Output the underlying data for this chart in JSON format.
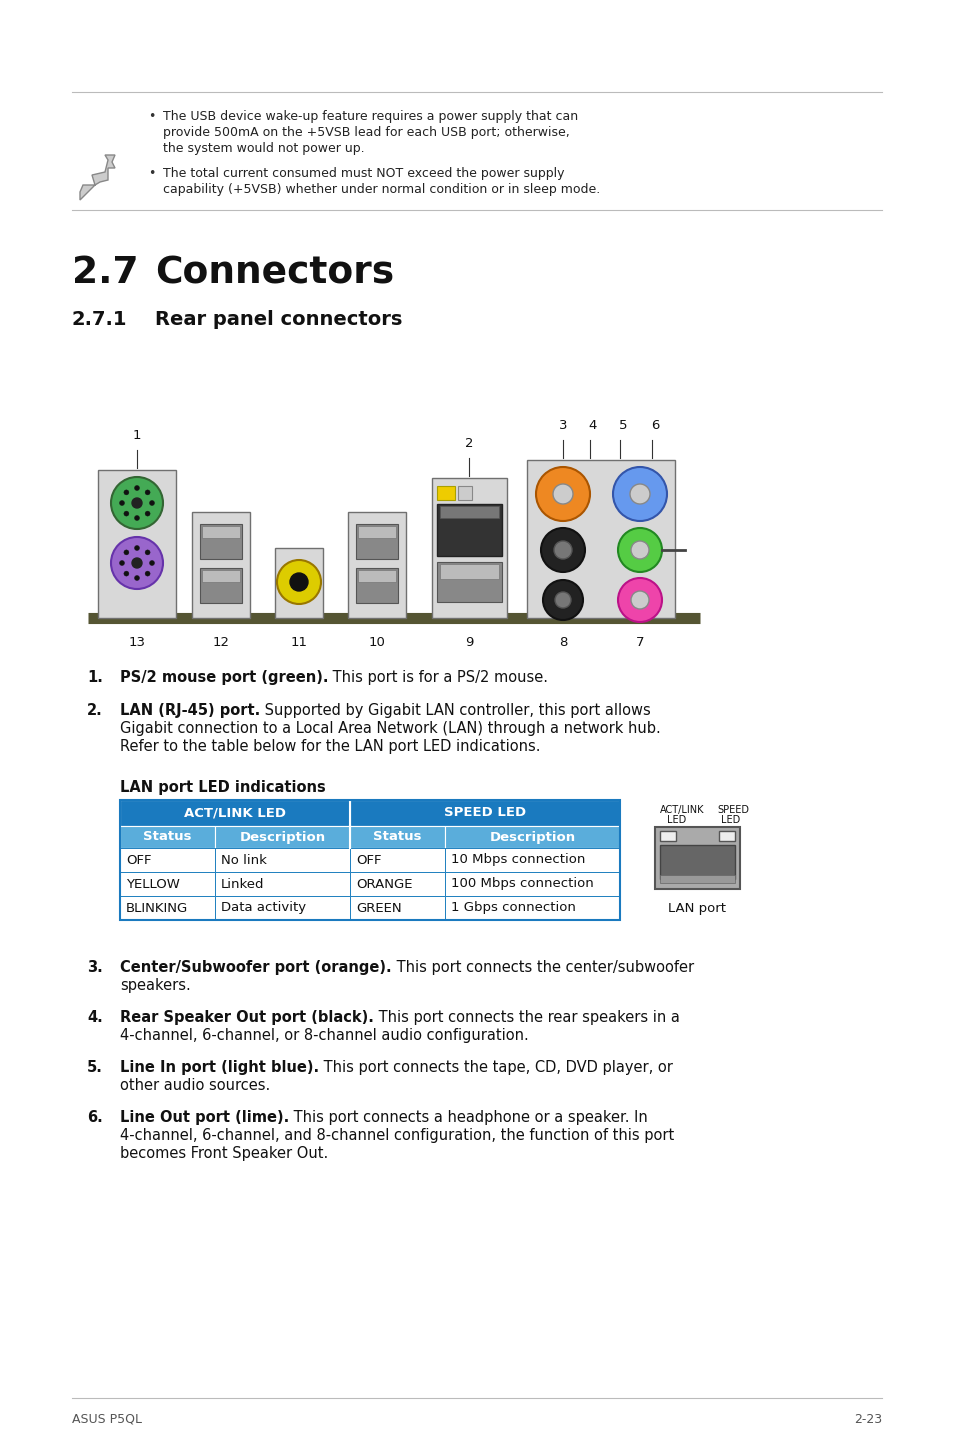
{
  "bg_color": "#ffffff",
  "note_text_1a": "The USB device wake-up feature requires a power supply that can",
  "note_text_1b": "provide 500mA on the +5VSB lead for each USB port; otherwise,",
  "note_text_1c": "the system would not power up.",
  "note_text_2a": "The total current consumed must NOT exceed the power supply",
  "note_text_2b": "capability (+5VSB) whether under normal condition or in sleep mode.",
  "section_num": "2.7",
  "section_name": "Connectors",
  "subsection_num": "2.7.1",
  "subsection_name": "Rear panel connectors",
  "item1_bold": "PS/2 mouse port (green).",
  "item1_rest": " This port is for a PS/2 mouse.",
  "item2_bold": "LAN (RJ-45) port.",
  "item2_rest": " Supported by Gigabit LAN controller, this port allows",
  "item2_line2": "Gigabit connection to a Local Area Network (LAN) through a network hub.",
  "item2_line3": "Refer to the table below for the LAN port LED indications.",
  "lan_table_title": "LAN port LED indications",
  "table_header1": "ACT/LINK LED",
  "table_header2": "SPEED LED",
  "table_col_headers": [
    "Status",
    "Description",
    "Status",
    "Description"
  ],
  "table_rows": [
    [
      "OFF",
      "No link",
      "OFF",
      "10 Mbps connection"
    ],
    [
      "YELLOW",
      "Linked",
      "ORANGE",
      "100 Mbps connection"
    ],
    [
      "BLINKING",
      "Data activity",
      "GREEN",
      "1 Gbps connection"
    ]
  ],
  "item3_bold": "Center/Subwoofer port (orange).",
  "item3_rest": " This port connects the center/subwoofer",
  "item3_line2": "speakers.",
  "item4_bold": "Rear Speaker Out port (black).",
  "item4_rest": " This port connects the rear speakers in a",
  "item4_line2": "4-channel, 6-channel, or 8-channel audio configuration.",
  "item5_bold": "Line In port (light blue).",
  "item5_rest": " This port connects the tape, CD, DVD player, or",
  "item5_line2": "other audio sources.",
  "item6_bold": "Line Out port (lime).",
  "item6_rest": " This port connects a headphone or a speaker. In",
  "item6_line2": "4-channel, 6-channel, and 8-channel configuration, the function of this port",
  "item6_line3": "becomes Front Speaker Out.",
  "footer_left": "ASUS P5QL",
  "footer_right": "2-23",
  "table_header_bg": "#1a7abf",
  "table_subheader_bg": "#5aaddb",
  "table_row_border": "#2080c0"
}
